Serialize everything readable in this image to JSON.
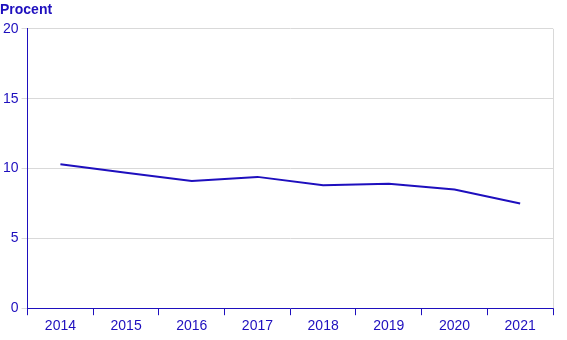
{
  "chart_data": {
    "type": "line",
    "y_label": "Procent",
    "categories": [
      "2014",
      "2015",
      "2016",
      "2017",
      "2018",
      "2019",
      "2020",
      "2021"
    ],
    "values": [
      10.3,
      9.7,
      9.1,
      9.4,
      8.8,
      8.9,
      8.5,
      7.5
    ],
    "color": "#1e0fbe",
    "ylim": [
      0,
      20
    ],
    "yticks": [
      0,
      5,
      10,
      15,
      20
    ],
    "grid": true
  }
}
